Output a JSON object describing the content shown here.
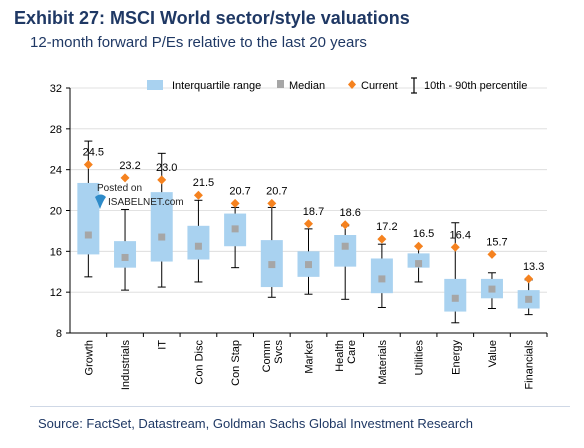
{
  "title": "Exhibit 27: MSCI World sector/style valuations",
  "subtitle": "12-month forward P/Es relative to the last 20 years",
  "source": "Source: FactSet, Datastream, Goldman Sachs Global Investment Research",
  "watermark": {
    "line1": "Posted on",
    "line2": "ISABELNET.com"
  },
  "colors": {
    "box": "#a9d2f0",
    "median": "#a6a6a6",
    "current": "#f5821f",
    "whisker": "#000000",
    "title": "#1f3864"
  },
  "legend": {
    "iqr": "Interquartile range",
    "median": "Median",
    "current": "Current",
    "range": "10th - 90th percentile",
    "placement": "top"
  },
  "chart_data": {
    "type": "box",
    "ylim": [
      8,
      32
    ],
    "yticks": [
      "8",
      "12",
      "16",
      "20",
      "24",
      "28",
      "32"
    ],
    "categories": [
      {
        "name": [
          "Growth"
        ],
        "p10": 13.5,
        "q1": 15.7,
        "median": 17.6,
        "q3": 22.7,
        "p90": 26.8,
        "current": 24.5,
        "label": "24.5"
      },
      {
        "name": [
          "Industrials"
        ],
        "p10": 12.2,
        "q1": 14.4,
        "median": 15.4,
        "q3": 17.0,
        "p90": 20.1,
        "current": 23.2,
        "label": "23.2"
      },
      {
        "name": [
          "IT"
        ],
        "p10": 12.5,
        "q1": 15.0,
        "median": 17.4,
        "q3": 21.8,
        "p90": 25.6,
        "current": 23.0,
        "label": "23.0"
      },
      {
        "name": [
          "Con Disc"
        ],
        "p10": 13.0,
        "q1": 15.2,
        "median": 16.5,
        "q3": 18.5,
        "p90": 21.0,
        "current": 21.5,
        "label": "21.5"
      },
      {
        "name": [
          "Con Stap"
        ],
        "p10": 14.4,
        "q1": 16.5,
        "median": 18.2,
        "q3": 19.7,
        "p90": 20.3,
        "current": 20.7,
        "label": "20.7"
      },
      {
        "name": [
          "Comm",
          "Svcs"
        ],
        "p10": 11.5,
        "q1": 12.5,
        "median": 14.7,
        "q3": 17.1,
        "p90": 20.3,
        "current": 20.7,
        "label": "20.7"
      },
      {
        "name": [
          "Market"
        ],
        "p10": 11.8,
        "q1": 13.5,
        "median": 14.7,
        "q3": 16.0,
        "p90": 18.2,
        "current": 18.7,
        "label": "18.7"
      },
      {
        "name": [
          "Health",
          "Care"
        ],
        "p10": 11.3,
        "q1": 14.5,
        "median": 16.5,
        "q3": 17.6,
        "p90": 18.5,
        "current": 18.6,
        "label": "18.6"
      },
      {
        "name": [
          "Materials"
        ],
        "p10": 10.5,
        "q1": 11.9,
        "median": 13.3,
        "q3": 15.3,
        "p90": 16.7,
        "current": 17.2,
        "label": "17.2"
      },
      {
        "name": [
          "Utilities"
        ],
        "p10": 13.0,
        "q1": 14.4,
        "median": 14.8,
        "q3": 15.8,
        "p90": 16.5,
        "current": 16.5,
        "label": "16.5"
      },
      {
        "name": [
          "Energy"
        ],
        "p10": 9.0,
        "q1": 10.1,
        "median": 11.4,
        "q3": 13.3,
        "p90": 18.8,
        "current": 16.4,
        "label": "16.4"
      },
      {
        "name": [
          "Value"
        ],
        "p10": 10.4,
        "q1": 11.4,
        "median": 12.3,
        "q3": 13.3,
        "p90": 13.9,
        "current": 15.7,
        "label": "15.7"
      },
      {
        "name": [
          "Financials"
        ],
        "p10": 9.8,
        "q1": 10.4,
        "median": 11.3,
        "q3": 12.2,
        "p90": 13.2,
        "current": 13.3,
        "label": "13.3"
      }
    ]
  }
}
